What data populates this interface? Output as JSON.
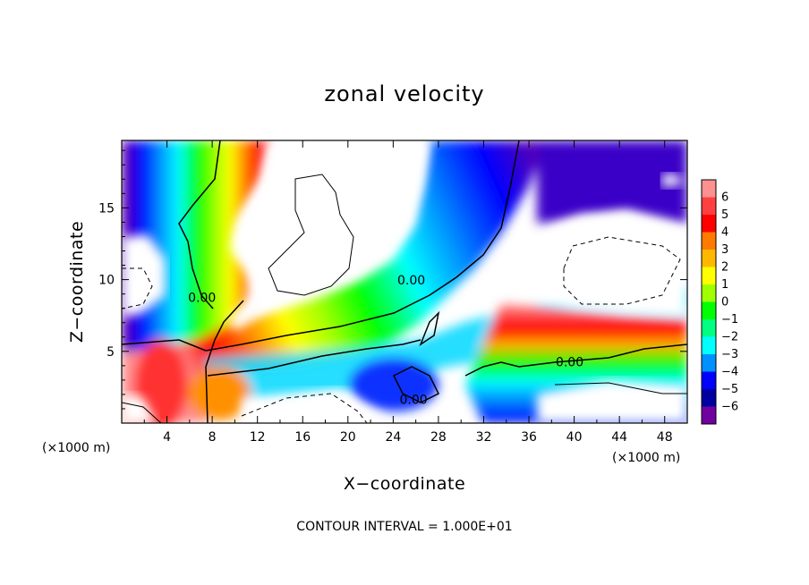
{
  "chart_data": {
    "type": "heatmap",
    "title": "zonal velocity",
    "xlabel": "X−coordinate",
    "ylabel": "Z−coordinate",
    "x_unit": "(×1000 m)",
    "y_unit": "(×1000 m)",
    "xlim": [
      0,
      50
    ],
    "ylim": [
      0,
      19.7
    ],
    "x_ticks": [
      "4",
      "8",
      "12",
      "16",
      "20",
      "24",
      "28",
      "32",
      "36",
      "40",
      "44",
      "48"
    ],
    "y_ticks": [
      "5",
      "10",
      "15"
    ],
    "footer": "CONTOUR INTERVAL = 1.000E+01",
    "colorbar": {
      "labels": [
        "6",
        "5",
        "4",
        "3",
        "2",
        "1",
        "0",
        "−1",
        "−2",
        "−3",
        "−4",
        "−5",
        "−6"
      ],
      "colors": [
        "#ff9090",
        "#ff4040",
        "#ff0000",
        "#ff7a00",
        "#ffb800",
        "#ffff00",
        "#a0ff00",
        "#00ff00",
        "#00ff80",
        "#00ffff",
        "#0090ff",
        "#0000ff",
        "#0000a0",
        "#7000a0"
      ]
    },
    "contour_labels": [
      {
        "text": "0.00",
        "x": 7.1,
        "y": 8.7
      },
      {
        "text": "0.00",
        "x": 25.6,
        "y": 9.9
      },
      {
        "text": "0.00",
        "x": 39.6,
        "y": 4.2
      },
      {
        "text": "0.00",
        "x": 25.8,
        "y": 1.6
      }
    ]
  }
}
